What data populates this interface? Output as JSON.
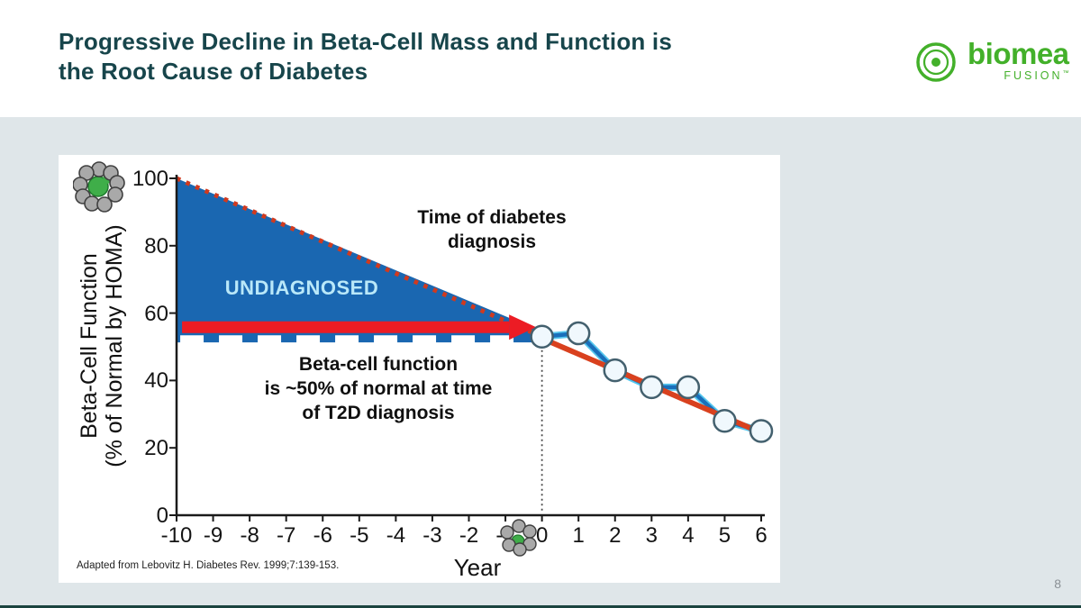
{
  "header": {
    "title_line1": "Progressive Decline in Beta-Cell Mass and Function is",
    "title_line2": "the Root Cause of Diabetes"
  },
  "logo": {
    "wordmark": "biomea",
    "sub": "FUSION",
    "tm": "™"
  },
  "footer": {
    "page_number": "8"
  },
  "citation": "Adapted from Lebovitz H. Diabetes Rev. 1999;7:139-153.",
  "chart_data": {
    "type": "line",
    "xlabel": "Year",
    "ylabel_line1": "Beta-Cell Function",
    "ylabel_line2": "(% of Normal by HOMA)",
    "xlim": [
      -10,
      6
    ],
    "ylim": [
      0,
      100
    ],
    "x_ticks": [
      -10,
      -9,
      -8,
      -7,
      -6,
      -5,
      -4,
      -3,
      -2,
      -1,
      0,
      1,
      2,
      3,
      4,
      5,
      6
    ],
    "y_ticks": [
      100,
      80,
      60,
      40,
      20,
      0
    ],
    "area": {
      "label": "UNDIAGNOSED",
      "apex": {
        "x": -10,
        "y": 100
      },
      "tip": {
        "x": 0,
        "y": 54.5
      },
      "baseline": 51.3,
      "color": "#1a67b1"
    },
    "decline_line": {
      "from": {
        "x": -10,
        "y": 100
      },
      "to": {
        "x": 0,
        "y": 53
      },
      "color": "#d03a1f",
      "style": "dotted"
    },
    "halfway_dashed_line": {
      "y": 52.2,
      "color": "#ffffff"
    },
    "arrow": {
      "y": 55.8,
      "x_start": -9.85,
      "x_end": -0.9,
      "color": "#ec1c24"
    },
    "diagnosis_vline_x": 0,
    "series": [
      {
        "name": "beta-cell function after diagnosis",
        "color": "#1a6fba",
        "highlight": "#56c7ee",
        "x": [
          0,
          1,
          2,
          3,
          4,
          5,
          6
        ],
        "values": [
          53,
          54,
          43,
          38,
          38,
          28,
          25
        ]
      },
      {
        "name": "decline trend",
        "color": "#d9411e",
        "x": [
          0,
          6.15
        ],
        "values": [
          52.5,
          23.8
        ]
      }
    ],
    "annotations": {
      "diagnosis_label_line1": "Time of diabetes",
      "diagnosis_label_line2": "diagnosis",
      "halfway_label_line1": "Beta-cell function",
      "halfway_label_line2": "is ~50% of normal at time",
      "halfway_label_line3": "of T2D diagnosis"
    }
  }
}
